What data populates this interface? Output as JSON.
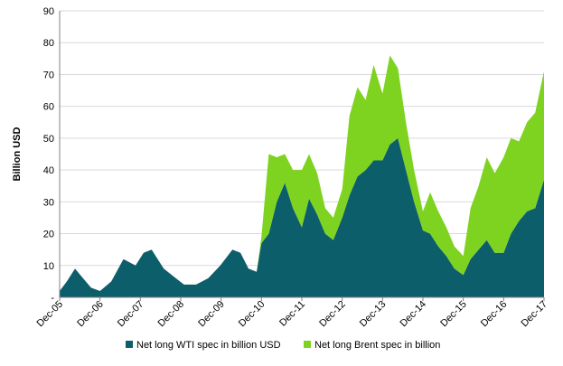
{
  "chart_data": {
    "type": "area",
    "ylabel": "Billion USD",
    "ylim": [
      0,
      90
    ],
    "y_ticks": [
      0,
      10,
      20,
      30,
      40,
      50,
      60,
      70,
      80,
      90
    ],
    "y_tick_labels": [
      "-",
      "10",
      "20",
      "30",
      "40",
      "50",
      "60",
      "70",
      "80",
      "90"
    ],
    "x_tick_labels": [
      "Dec-05",
      "Dec-06",
      "Dec-07",
      "Dec-08",
      "Dec-09",
      "Dec-10",
      "Dec-11",
      "Dec-12",
      "Dec-13",
      "Dec-14",
      "Dec-15",
      "Dec-16",
      "Dec-17"
    ],
    "x_tick_values": [
      2005.92,
      2006.92,
      2007.92,
      2008.92,
      2009.92,
      2010.92,
      2011.92,
      2012.92,
      2013.92,
      2014.92,
      2015.92,
      2016.92,
      2017.92
    ],
    "xlim": [
      2005.92,
      2017.92
    ],
    "grid": "horizontal",
    "legend_position": "bottom",
    "series": [
      {
        "name": "Net long WTI spec in billion USD",
        "color": "#0d5e6b",
        "x": [
          2005.92,
          2006.1,
          2006.3,
          2006.5,
          2006.7,
          2006.92,
          2007.2,
          2007.5,
          2007.8,
          2008.0,
          2008.2,
          2008.5,
          2008.8,
          2009.0,
          2009.3,
          2009.6,
          2009.9,
          2010.2,
          2010.4,
          2010.6,
          2010.8,
          2010.92,
          2011.1,
          2011.3,
          2011.5,
          2011.7,
          2011.92,
          2012.1,
          2012.3,
          2012.5,
          2012.7,
          2012.92,
          2013.1,
          2013.3,
          2013.5,
          2013.7,
          2013.92,
          2014.1,
          2014.3,
          2014.5,
          2014.7,
          2014.92,
          2015.1,
          2015.3,
          2015.5,
          2015.7,
          2015.92,
          2016.1,
          2016.3,
          2016.5,
          2016.7,
          2016.92,
          2017.1,
          2017.3,
          2017.5,
          2017.7,
          2017.92
        ],
        "values": [
          2,
          5,
          9,
          6,
          3,
          2,
          5,
          12,
          10,
          14,
          15,
          9,
          6,
          4,
          4,
          6,
          10,
          15,
          14,
          9,
          8,
          17,
          20,
          30,
          36,
          28,
          22,
          31,
          26,
          20,
          18,
          25,
          32,
          38,
          40,
          43,
          43,
          48,
          50,
          40,
          30,
          21,
          20,
          16,
          13,
          9,
          7,
          12,
          15,
          18,
          14,
          14,
          20,
          24,
          27,
          28,
          37
        ]
      },
      {
        "name": "Net long Brent spec in billion",
        "color": "#7ed321",
        "x": [
          2005.92,
          2006.1,
          2006.3,
          2006.5,
          2006.7,
          2006.92,
          2007.2,
          2007.5,
          2007.8,
          2008.0,
          2008.2,
          2008.5,
          2008.8,
          2009.0,
          2009.3,
          2009.6,
          2009.9,
          2010.2,
          2010.4,
          2010.6,
          2010.8,
          2010.92,
          2011.1,
          2011.3,
          2011.5,
          2011.7,
          2011.92,
          2012.1,
          2012.3,
          2012.5,
          2012.7,
          2012.92,
          2013.1,
          2013.3,
          2013.5,
          2013.7,
          2013.92,
          2014.1,
          2014.3,
          2014.5,
          2014.7,
          2014.92,
          2015.1,
          2015.3,
          2015.5,
          2015.7,
          2015.92,
          2016.1,
          2016.3,
          2016.5,
          2016.7,
          2016.92,
          2017.1,
          2017.3,
          2017.5,
          2017.7,
          2017.92
        ],
        "values": [
          0,
          0,
          0,
          0,
          0,
          0,
          0,
          0,
          0,
          0,
          0,
          0,
          0,
          0,
          0,
          0,
          0,
          0,
          0,
          0,
          0,
          2,
          25,
          14,
          9,
          12,
          18,
          14,
          13,
          8,
          7,
          9,
          25,
          28,
          22,
          30,
          21,
          28,
          22,
          15,
          10,
          6,
          13,
          11,
          9,
          7,
          6,
          16,
          20,
          26,
          25,
          30,
          30,
          25,
          28,
          30,
          34
        ]
      }
    ]
  }
}
